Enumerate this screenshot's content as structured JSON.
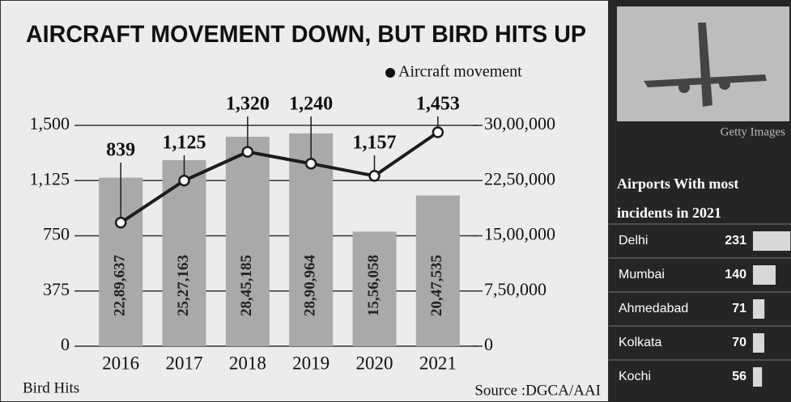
{
  "chart_data": {
    "type": "bar",
    "title": "AIRCRAFT MOVEMENT DOWN, BUT BIRD HITS UP",
    "source": "Source :DGCA/AAI",
    "ylabel": "Bird Hits",
    "categories": [
      "2016",
      "2017",
      "2018",
      "2019",
      "2020",
      "2021"
    ],
    "series": [
      {
        "name": "Aircraft movement",
        "type": "bar",
        "axis": "y2",
        "color": "#a9a9a9",
        "values": [
          2289637,
          2527163,
          2845185,
          2890964,
          1556058,
          2047535
        ],
        "value_labels": [
          "22,89,637",
          "25,27,163",
          "28,45,185",
          "28,90,964",
          "15,56,058",
          "20,47,535"
        ]
      },
      {
        "type": "line",
        "color": "#1c1c1c",
        "values": [
          839,
          1125,
          1320,
          1240,
          1157,
          1453
        ],
        "value_labels": [
          "839",
          "1,125",
          "1,320",
          "1,240",
          "1,157",
          "1,453"
        ]
      }
    ],
    "ylim": [
      0,
      1500
    ],
    "yticks": [
      0,
      375,
      750,
      {
        "value": 1125,
        "label": "1,125"
      },
      {
        "value": 1500,
        "label": "1,500"
      }
    ],
    "y2lim": [
      0,
      3000000
    ],
    "y2ticks": [
      0,
      {
        "value": 750000,
        "label": "7,50,000"
      },
      {
        "value": 1500000,
        "label": "15,00,000"
      },
      {
        "value": 2250000,
        "label": "22,50,000"
      },
      {
        "value": 3000000,
        "label": "30,00,000"
      }
    ],
    "grid": true,
    "legend": "top-right"
  },
  "sidebar": {
    "photo_credit": "Getty Images",
    "heading": [
      "Airports With most",
      "incidents in 2021"
    ],
    "airports": [
      {
        "name": "Delhi",
        "value": 231
      },
      {
        "name": "Mumbai",
        "value": 140
      },
      {
        "name": "Ahmedabad",
        "value": 71
      },
      {
        "name": "Kolkata",
        "value": 70
      },
      {
        "name": "Kochi",
        "value": 56
      }
    ]
  }
}
